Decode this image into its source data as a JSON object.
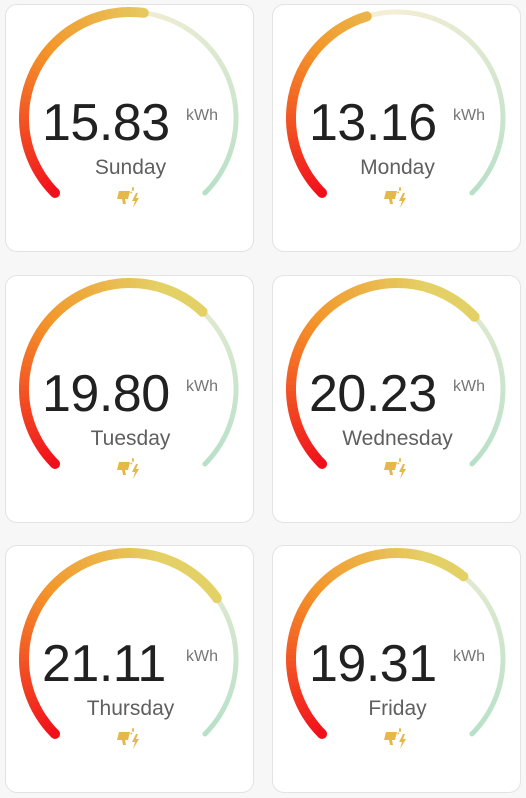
{
  "unit": "kWh",
  "colors": {
    "red": "#f20f1c",
    "orange": "#f3962a",
    "yellow": "#e4d166",
    "track": "#f3eed4",
    "green": "#b7e0c8",
    "icon": "#e5b84a"
  },
  "icon_name": "solar-power-icon",
  "gauge_max": 30,
  "cards": [
    {
      "day": "Sunday",
      "value": "15.83",
      "level": 15.83
    },
    {
      "day": "Monday",
      "value": "13.16",
      "level": 13.16
    },
    {
      "day": "Tuesday",
      "value": "19.80",
      "level": 19.8
    },
    {
      "day": "Wednesday",
      "value": "20.23",
      "level": 20.23
    },
    {
      "day": "Thursday",
      "value": "21.11",
      "level": 21.11
    },
    {
      "day": "Friday",
      "value": "19.31",
      "level": 19.31
    }
  ]
}
